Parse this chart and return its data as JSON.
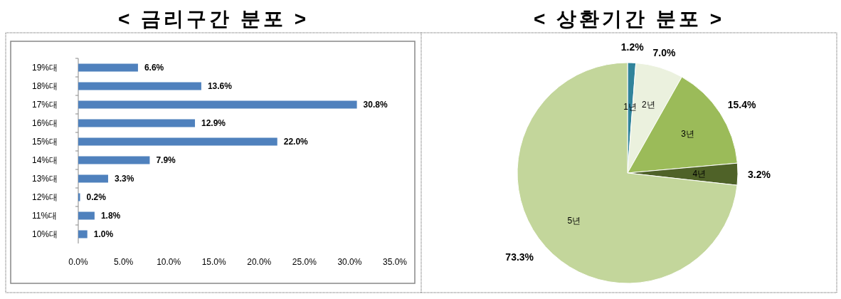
{
  "chart_data": [
    {
      "type": "bar",
      "orientation": "horizontal",
      "title": "< 금리구간 분포 >",
      "categories": [
        "19%대",
        "18%대",
        "17%대",
        "16%대",
        "15%대",
        "14%대",
        "13%대",
        "12%대",
        "11%대",
        "10%대"
      ],
      "values": [
        6.6,
        13.6,
        30.8,
        12.9,
        22.0,
        7.9,
        3.3,
        0.2,
        1.8,
        1.0
      ],
      "value_labels": [
        "6.6%",
        "13.6%",
        "30.8%",
        "12.9%",
        "22.0%",
        "7.9%",
        "3.3%",
        "0.2%",
        "1.8%",
        "1.0%"
      ],
      "color": "#4f81bd",
      "xlim": [
        0,
        35
      ],
      "xticks": [
        {
          "value": 0,
          "label": "0.0%"
        },
        {
          "value": 5,
          "label": "5.0%"
        },
        {
          "value": 10,
          "label": "10.0%"
        },
        {
          "value": 15,
          "label": "15.0%"
        },
        {
          "value": 20,
          "label": "20.0%"
        },
        {
          "value": 25,
          "label": "25.0%"
        },
        {
          "value": 30,
          "label": "30.0%"
        },
        {
          "value": 35,
          "label": "35.0%"
        }
      ],
      "grid": false
    },
    {
      "type": "pie",
      "title": "< 상환기간 분포 >",
      "categories": [
        "1년",
        "2년",
        "3년",
        "4년",
        "5년"
      ],
      "values": [
        1.2,
        7.0,
        15.4,
        3.2,
        73.3
      ],
      "value_labels": [
        "1.2%",
        "7.0%",
        "15.4%",
        "3.2%",
        "73.3%"
      ],
      "colors": [
        "#31849b",
        "#ebf1de",
        "#9bbb59",
        "#4f6228",
        "#c3d69b"
      ]
    }
  ]
}
